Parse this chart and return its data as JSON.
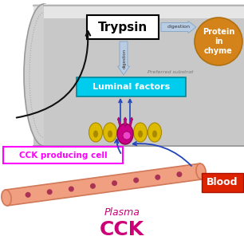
{
  "intestine_body_color": "#c8c8c8",
  "intestine_top_color": "#e8e8e8",
  "intestine_edge": "#999999",
  "trypsin_box_color": "white",
  "trypsin_box_edge": "black",
  "trypsin_text": "Trypsin",
  "digestion_arrow_color": "#b8cce4",
  "digestion_arrow_edge": "#8aaac8",
  "digestion_label": "digestion",
  "protein_circle_color": "#d4831a",
  "protein_text": "Protein\nin\nchyme",
  "preferred_text": "Preferred substrat",
  "luminal_box_color": "#00ccee",
  "luminal_text": "Luminal factors",
  "cck_label_text": "CCK producing cell",
  "cck_label_color": "#ff00ff",
  "plasma_text": "Plasma",
  "cck_text": "CCK",
  "blood_text": "Blood",
  "blood_box_color": "#dd2200",
  "blood_vessel_color": "#f0a080",
  "blood_vessel_edge": "#d07858",
  "plasma_color": "#cc0077",
  "cell_yellow_color": "#ddbb00",
  "cell_yellow_dark": "#aa8800",
  "cell_magenta_color": "#cc0088",
  "cell_magenta_dark": "#880055",
  "arrow_blue": "#2244bb",
  "black_arrow_color": "#111111",
  "dot_color": "#aa3355"
}
